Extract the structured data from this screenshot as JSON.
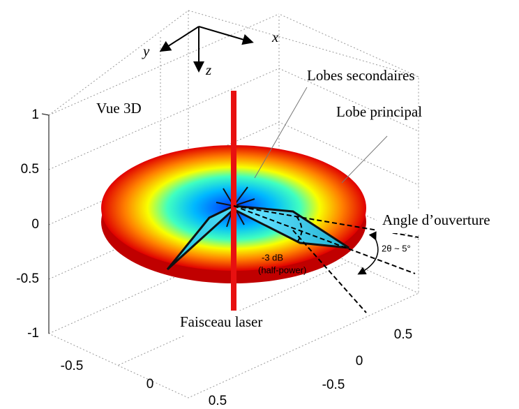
{
  "axes": {
    "z_ticks": [
      "1",
      "0.5",
      "0",
      "-0.5",
      "-1"
    ],
    "x_ticks": [
      "-0.5",
      "0",
      "0.5"
    ],
    "y_ticks": [
      "0.5",
      "0",
      "-0.5"
    ],
    "triad": {
      "x": "x",
      "y": "y",
      "z": "z"
    }
  },
  "annotations": {
    "view": "Vue 3D",
    "side_lobes": "Lobes secondaires",
    "main_lobe": "Lobe principal",
    "aperture": "Angle d’ouverture",
    "beam": "Faisceau laser",
    "half_power": [
      "-3 dB",
      "(half-power)"
    ],
    "angle": "2θ ~ 5°"
  }
}
